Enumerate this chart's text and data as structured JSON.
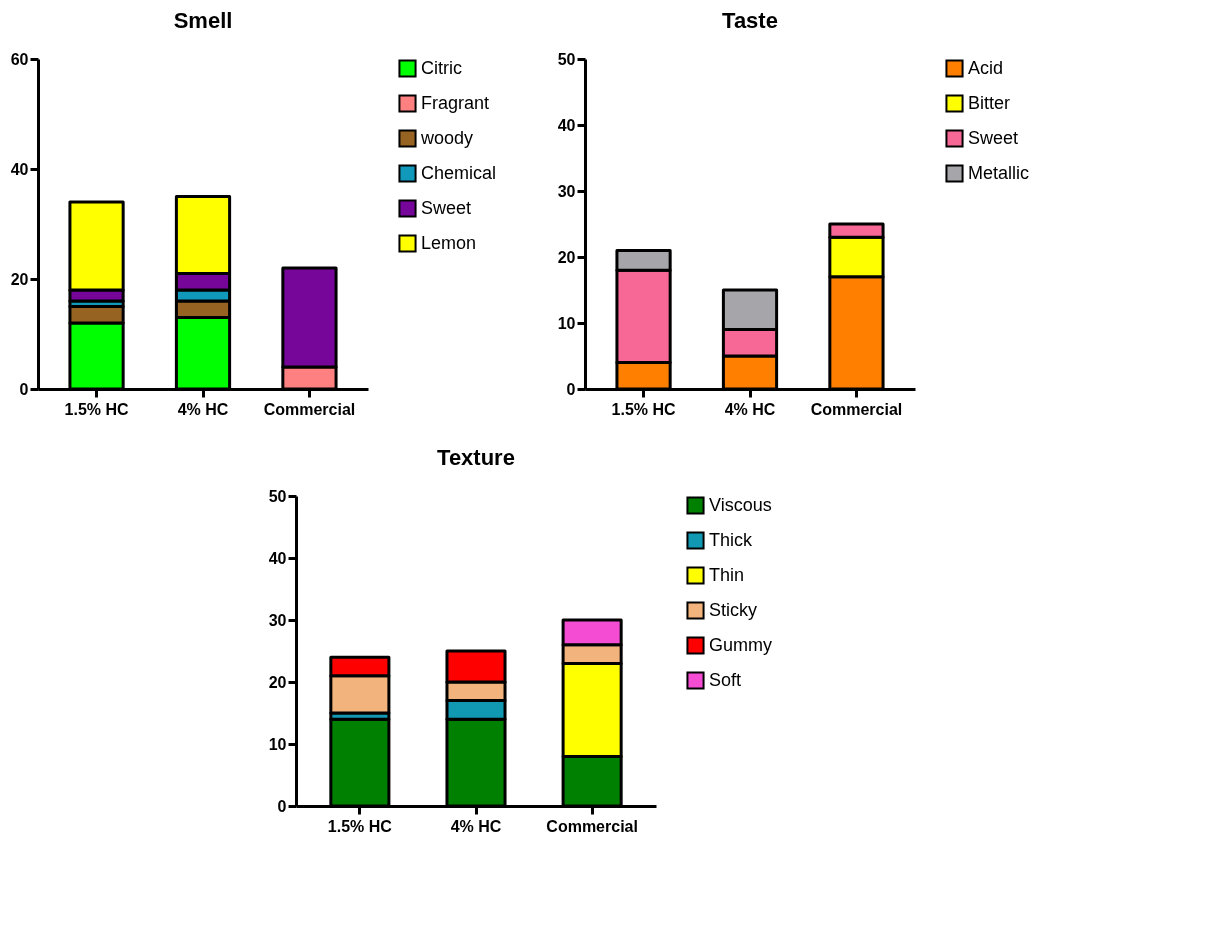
{
  "chart_data": [
    {
      "type": "bar",
      "title": "Smell",
      "categories": [
        "1.5% HC",
        "4% HC",
        "Commercial"
      ],
      "stacked": true,
      "ylim": [
        0,
        60
      ],
      "yticks": [
        0,
        20,
        40,
        60
      ],
      "grid": false,
      "legend": "right",
      "series": [
        {
          "name": "Citric",
          "color": "#00ff00",
          "values": [
            12,
            13,
            null
          ]
        },
        {
          "name": "Fragrant",
          "color": "#ff8080",
          "values": [
            null,
            null,
            4
          ]
        },
        {
          "name": "woody",
          "color": "#966322",
          "values": [
            3,
            3,
            null
          ]
        },
        {
          "name": "Chemical",
          "color": "#1199bb",
          "values": [
            1,
            2,
            null
          ]
        },
        {
          "name": "Sweet",
          "color": "#750699",
          "values": [
            2,
            3,
            18
          ]
        },
        {
          "name": "Lemon",
          "color": "#ffff00",
          "values": [
            16,
            14,
            null
          ]
        }
      ]
    },
    {
      "type": "bar",
      "title": "Taste",
      "categories": [
        "1.5% HC",
        "4% HC",
        "Commercial"
      ],
      "stacked": true,
      "ylim": [
        0,
        50
      ],
      "yticks": [
        0,
        10,
        20,
        30,
        40,
        50
      ],
      "grid": false,
      "legend": "right",
      "series": [
        {
          "name": "Acid",
          "color": "#ff8000",
          "values": [
            4,
            5,
            17
          ]
        },
        {
          "name": "Bitter",
          "color": "#ffff00",
          "values": [
            null,
            null,
            6
          ]
        },
        {
          "name": "Sweet",
          "color": "#f86896",
          "values": [
            14,
            4,
            2
          ]
        },
        {
          "name": "Metallic",
          "color": "#a6a5aa",
          "values": [
            3,
            6,
            null
          ]
        }
      ]
    },
    {
      "type": "bar",
      "title": "Texture",
      "categories": [
        "1.5% HC",
        "4% HC",
        "Commercial"
      ],
      "stacked": true,
      "ylim": [
        0,
        50
      ],
      "yticks": [
        0,
        10,
        20,
        30,
        40,
        50
      ],
      "grid": false,
      "legend": "right",
      "series": [
        {
          "name": "Viscous",
          "color": "#008000",
          "values": [
            14,
            14,
            8
          ]
        },
        {
          "name": "Thick",
          "color": "#1199b4",
          "values": [
            1,
            3,
            null
          ]
        },
        {
          "name": "Thin",
          "color": "#ffff00",
          "values": [
            null,
            null,
            15
          ]
        },
        {
          "name": "Sticky",
          "color": "#f2b47c",
          "values": [
            6,
            3,
            3
          ]
        },
        {
          "name": "Gummy",
          "color": "#ff0000",
          "values": [
            3,
            5,
            null
          ]
        },
        {
          "name": "Soft",
          "color": "#f44dd4",
          "values": [
            null,
            null,
            4
          ]
        }
      ]
    }
  ]
}
